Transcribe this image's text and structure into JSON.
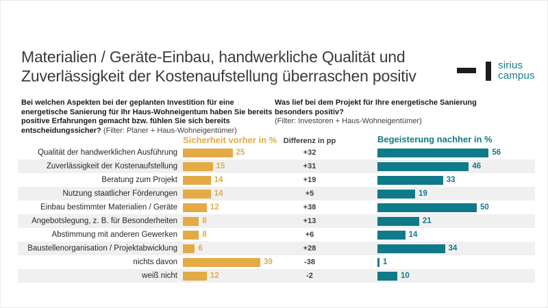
{
  "page": {
    "title": "Materialien / Geräte-Einbau, handwerkliche Qualität und Zuverlässigkeit der Kostenaufstellung überraschen positiv"
  },
  "logo": {
    "brand_line1": "sirius",
    "brand_line2": "campus",
    "color": "#157c8c",
    "mark_color": "#1d1d1b"
  },
  "questions": {
    "left_bold": "Bei welchen Aspekten bei der geplanten Investition für eine energetische Sanierung für Ihr Haus-Wohneigentum haben Sie bereits positive Erfahrungen gemacht bzw. fühlen Sie sich bereits entscheidungssicher?",
    "left_filter": " (Filter: Planer + Haus-Wohneigentümer)",
    "right_bold": "Was lief bei dem Projekt für Ihre energetische Sanierung besonders positiv?",
    "right_filter": "(Filter: Investoren + Haus-Wohneigentümer)"
  },
  "chart_data": {
    "type": "bar",
    "orientation": "horizontal",
    "grid": false,
    "legend_position": "column-headers",
    "row_stripe_color": "#f1f0f0",
    "categories": [
      "Qualität der handwerklichen Ausführung",
      "Zuverlässigkeit der Kostenaufstellung",
      "Beratung zum Projekt",
      "Nutzung staatlicher Förderungen",
      "Einbau bestimmter Materialien / Geräte",
      "Angebotslegung, z. B. für Besonderheiten",
      "Abstimmung mit anderen Gewerken",
      "Baustellenorganisation / Projektabwicklung",
      "nichts davon",
      "weiß nicht"
    ],
    "series": [
      {
        "name": "Sicherheit vorher in %",
        "color": "#e3aa45",
        "xlim": [
          0,
          40
        ],
        "values": [
          25,
          15,
          14,
          14,
          12,
          8,
          8,
          6,
          39,
          12
        ]
      },
      {
        "name": "Begeisterung nachher in %",
        "color": "#0f7a8a",
        "xlim": [
          0,
          60
        ],
        "values": [
          56,
          46,
          33,
          19,
          50,
          21,
          14,
          34,
          1,
          10
        ]
      }
    ],
    "difference_column": {
      "label": "Differenz in pp",
      "values": [
        "+32",
        "+31",
        "+19",
        "+5",
        "+38",
        "+13",
        "+6",
        "+28",
        "-38",
        "-2"
      ]
    }
  }
}
